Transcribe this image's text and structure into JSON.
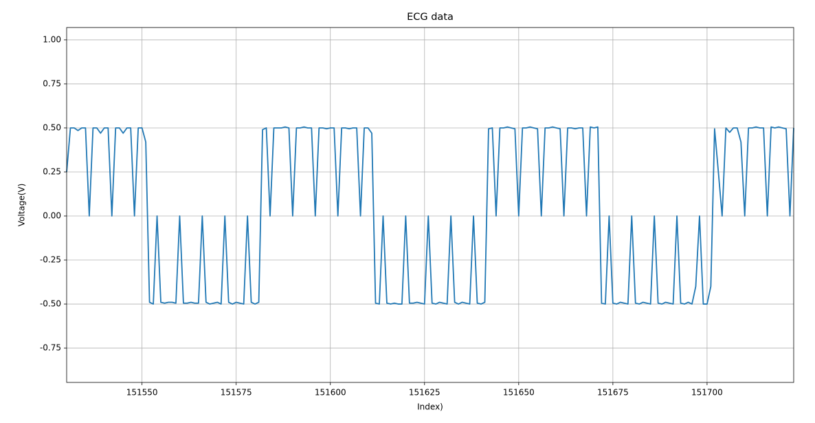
{
  "chart_data": {
    "type": "line",
    "title": "ECG data",
    "x_label": "Index)",
    "y_label": "Voltage(V)",
    "color": "#1f77b4",
    "grid": true,
    "xlim": [
      151530,
      151723
    ],
    "ylim": [
      -0.945,
      1.07
    ],
    "xticks": [
      151550,
      151575,
      151600,
      151625,
      151650,
      151675,
      151700
    ],
    "yticks": [
      -0.75,
      -0.5,
      -0.25,
      0.0,
      0.25,
      0.5,
      0.75,
      1.0
    ],
    "x": [
      151530,
      151531,
      151532,
      151533,
      151534,
      151535,
      151536,
      151537,
      151538,
      151539,
      151540,
      151541,
      151542,
      151543,
      151544,
      151545,
      151546,
      151547,
      151548,
      151549,
      151550,
      151551,
      151552,
      151553,
      151554,
      151555,
      151556,
      151557,
      151558,
      151559,
      151560,
      151561,
      151562,
      151563,
      151564,
      151565,
      151566,
      151567,
      151568,
      151569,
      151570,
      151571,
      151572,
      151573,
      151574,
      151575,
      151576,
      151577,
      151578,
      151579,
      151580,
      151581,
      151582,
      151583,
      151584,
      151585,
      151586,
      151587,
      151588,
      151589,
      151590,
      151591,
      151592,
      151593,
      151594,
      151595,
      151596,
      151597,
      151598,
      151599,
      151600,
      151601,
      151602,
      151603,
      151604,
      151605,
      151606,
      151607,
      151608,
      151609,
      151610,
      151611,
      151612,
      151613,
      151614,
      151615,
      151616,
      151617,
      151618,
      151619,
      151620,
      151621,
      151622,
      151623,
      151624,
      151625,
      151626,
      151627,
      151628,
      151629,
      151630,
      151631,
      151632,
      151633,
      151634,
      151635,
      151636,
      151637,
      151638,
      151639,
      151640,
      151641,
      151642,
      151643,
      151644,
      151645,
      151646,
      151647,
      151648,
      151649,
      151650,
      151651,
      151652,
      151653,
      151654,
      151655,
      151656,
      151657,
      151658,
      151659,
      151660,
      151661,
      151662,
      151663,
      151664,
      151665,
      151666,
      151667,
      151668,
      151669,
      151670,
      151671,
      151672,
      151673,
      151674,
      151675,
      151676,
      151677,
      151678,
      151679,
      151680,
      151681,
      151682,
      151683,
      151684,
      151685,
      151686,
      151687,
      151688,
      151689,
      151690,
      151691,
      151692,
      151693,
      151694,
      151695,
      151696,
      151697,
      151698,
      151699,
      151700,
      151701,
      151702,
      151703,
      151704,
      151705,
      151706,
      151707,
      151708,
      151709,
      151710,
      151711,
      151712,
      151713,
      151714,
      151715,
      151716,
      151717,
      151718,
      151719,
      151720,
      151721,
      151722,
      151723
    ],
    "values": [
      0.25,
      0.5,
      0.5,
      0.485,
      0.5,
      0.5,
      0,
      0.5,
      0.5,
      0.47,
      0.5,
      0.5,
      0,
      0.5,
      0.5,
      0.47,
      0.5,
      0.5,
      0,
      0.5,
      0.5,
      0.42,
      -0.49,
      -0.5,
      0,
      -0.49,
      -0.495,
      -0.49,
      -0.49,
      -0.495,
      0,
      -0.495,
      -0.495,
      -0.49,
      -0.495,
      -0.495,
      0,
      -0.49,
      -0.5,
      -0.495,
      -0.49,
      -0.5,
      0,
      -0.49,
      -0.5,
      -0.49,
      -0.495,
      -0.5,
      0,
      -0.49,
      -0.5,
      -0.49,
      0.49,
      0.5,
      0,
      0.5,
      0.5,
      0.5,
      0.505,
      0.5,
      0,
      0.5,
      0.5,
      0.505,
      0.5,
      0.5,
      0,
      0.5,
      0.5,
      0.495,
      0.5,
      0.5,
      0,
      0.5,
      0.5,
      0.495,
      0.5,
      0.5,
      0,
      0.5,
      0.5,
      0.47,
      -0.495,
      -0.5,
      0,
      -0.495,
      -0.5,
      -0.495,
      -0.5,
      -0.5,
      0,
      -0.495,
      -0.495,
      -0.49,
      -0.495,
      -0.5,
      0,
      -0.495,
      -0.5,
      -0.49,
      -0.495,
      -0.5,
      0,
      -0.49,
      -0.5,
      -0.49,
      -0.495,
      -0.5,
      0,
      -0.495,
      -0.5,
      -0.49,
      0.495,
      0.5,
      0,
      0.5,
      0.5,
      0.505,
      0.5,
      0.495,
      0,
      0.5,
      0.5,
      0.505,
      0.5,
      0.495,
      0,
      0.5,
      0.5,
      0.505,
      0.5,
      0.495,
      0,
      0.5,
      0.5,
      0.495,
      0.5,
      0.5,
      0,
      0.505,
      0.5,
      0.505,
      -0.495,
      -0.5,
      0,
      -0.495,
      -0.5,
      -0.49,
      -0.495,
      -0.5,
      0,
      -0.495,
      -0.5,
      -0.49,
      -0.495,
      -0.5,
      0,
      -0.495,
      -0.5,
      -0.49,
      -0.495,
      -0.5,
      0,
      -0.495,
      -0.5,
      -0.49,
      -0.5,
      -0.4,
      0,
      -0.5,
      -0.5,
      -0.4,
      0.495,
      0.25,
      0,
      0.5,
      0.475,
      0.5,
      0.5,
      0.42,
      0,
      0.5,
      0.5,
      0.505,
      0.5,
      0.5,
      0,
      0.505,
      0.5,
      0.505,
      0.5,
      0.495,
      0,
      0.5
    ]
  }
}
